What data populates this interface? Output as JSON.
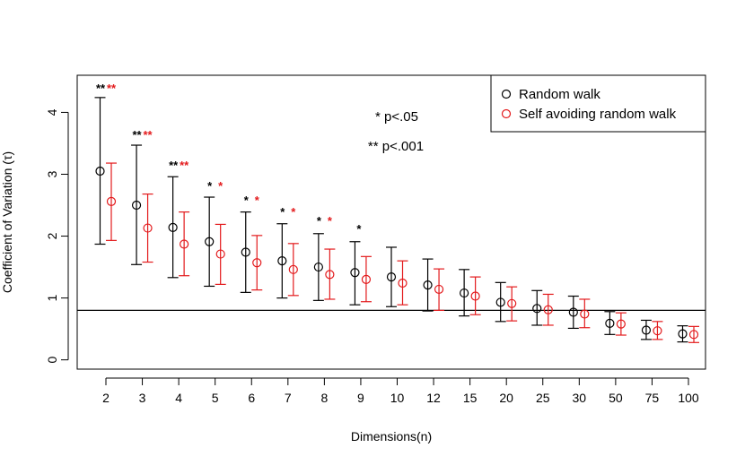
{
  "chart_data": {
    "type": "scatter",
    "title": "",
    "xlabel": "Dimensions(n)",
    "ylabel": "Coefficient of Variation (τ)",
    "ylim": [
      -0.15,
      4.6
    ],
    "yticks": [
      0,
      1,
      2,
      3,
      4
    ],
    "categories": [
      "2",
      "3",
      "4",
      "5",
      "6",
      "7",
      "8",
      "9",
      "10",
      "12",
      "15",
      "20",
      "25",
      "30",
      "50",
      "75",
      "100"
    ],
    "reference_line": 0.8,
    "legend": {
      "position": "top-right",
      "entries": [
        "Random walk",
        "Self avoiding random walk"
      ]
    },
    "annotations": [
      "* p<.05",
      "** p<.001"
    ],
    "series": [
      {
        "name": "Random walk",
        "color": "#000000",
        "values": [
          3.05,
          2.5,
          2.14,
          1.91,
          1.74,
          1.6,
          1.5,
          1.41,
          1.34,
          1.21,
          1.08,
          0.93,
          0.83,
          0.77,
          0.59,
          0.48,
          0.42
        ],
        "lower": [
          1.87,
          1.54,
          1.33,
          1.19,
          1.09,
          1.0,
          0.96,
          0.89,
          0.86,
          0.79,
          0.71,
          0.62,
          0.56,
          0.51,
          0.41,
          0.33,
          0.29
        ],
        "upper": [
          4.24,
          3.47,
          2.96,
          2.63,
          2.39,
          2.2,
          2.04,
          1.91,
          1.82,
          1.63,
          1.46,
          1.25,
          1.12,
          1.03,
          0.78,
          0.64,
          0.55
        ],
        "stars": [
          "**",
          "**",
          "**",
          "*",
          "*",
          "*",
          "*",
          "*",
          "",
          "",
          "",
          "",
          "",
          "",
          "",
          "",
          ""
        ]
      },
      {
        "name": "Self avoiding random walk",
        "color": "#e31a1c",
        "values": [
          2.56,
          2.13,
          1.87,
          1.71,
          1.57,
          1.46,
          1.38,
          1.3,
          1.24,
          1.14,
          1.03,
          0.91,
          0.81,
          0.74,
          0.58,
          0.47,
          0.41
        ],
        "lower": [
          1.93,
          1.58,
          1.36,
          1.22,
          1.13,
          1.04,
          0.98,
          0.94,
          0.89,
          0.8,
          0.73,
          0.63,
          0.56,
          0.52,
          0.4,
          0.33,
          0.28
        ],
        "upper": [
          3.18,
          2.68,
          2.39,
          2.19,
          2.01,
          1.88,
          1.79,
          1.67,
          1.6,
          1.47,
          1.34,
          1.18,
          1.06,
          0.98,
          0.76,
          0.62,
          0.54
        ],
        "stars": [
          "**",
          "**",
          "**",
          "*",
          "*",
          "*",
          "*",
          "",
          "",
          "",
          "",
          "",
          "",
          "",
          "",
          "",
          ""
        ]
      }
    ]
  }
}
